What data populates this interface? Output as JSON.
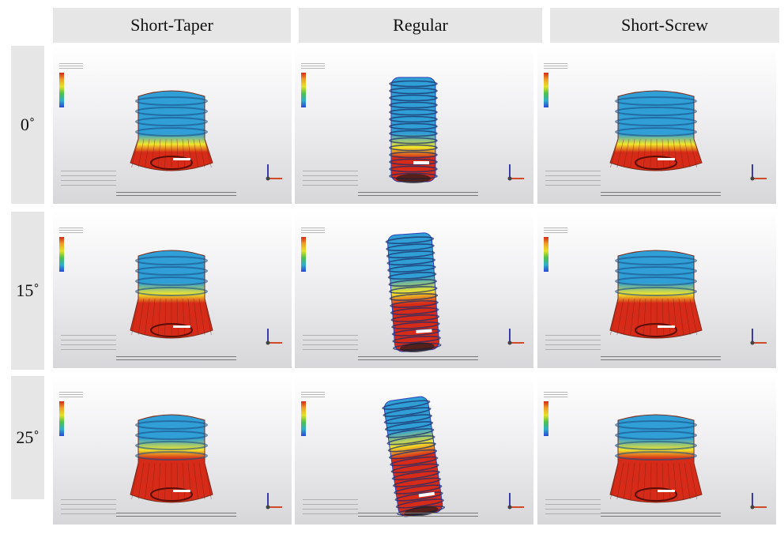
{
  "columns": [
    "Short-Taper",
    "Regular",
    "Short-Screw"
  ],
  "rows": [
    "0˚",
    "15˚",
    "25˚"
  ],
  "colors": {
    "high": "#d62b18",
    "mid": "#f2e52a",
    "low": "#2f9fd6",
    "lowest": "#2a3fb5"
  },
  "icons": [
    "color-legend-icon",
    "axis-triad-icon"
  ]
}
